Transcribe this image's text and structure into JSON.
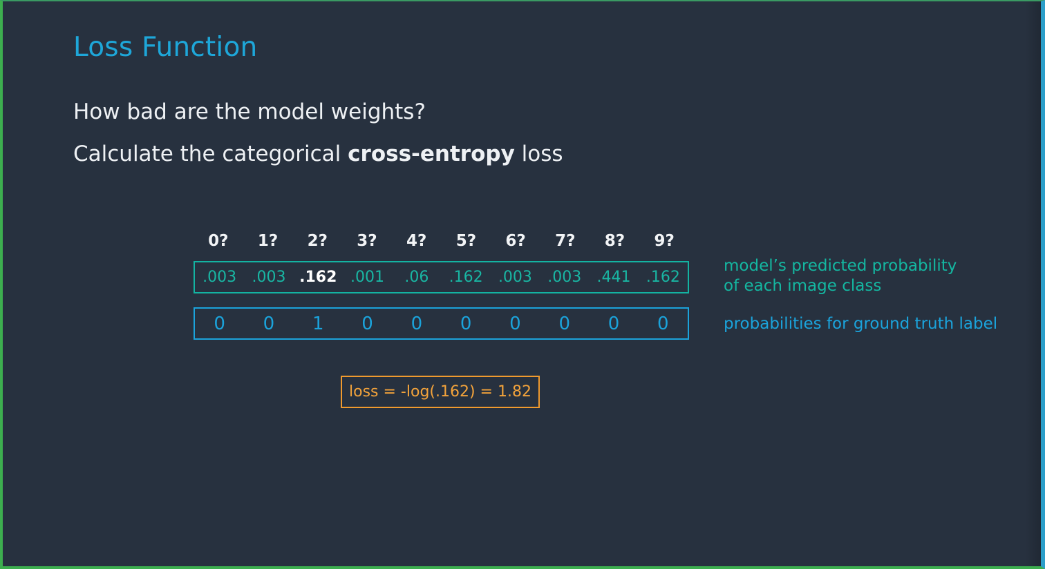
{
  "slide": {
    "title": "Loss Function",
    "question": "How bad are the model weights?",
    "calc_prefix": "Calculate the categorical ",
    "calc_bold": "cross-entropy",
    "calc_suffix": " loss"
  },
  "classes": [
    "0?",
    "1?",
    "2?",
    "3?",
    "4?",
    "5?",
    "6?",
    "7?",
    "8?",
    "9?"
  ],
  "predicted": [
    ".003",
    ".003",
    ".162",
    ".001",
    ".06",
    ".162",
    ".003",
    ".003",
    ".441",
    ".162"
  ],
  "highlighted_index": 2,
  "ground_truth": [
    "0",
    "0",
    "1",
    "0",
    "0",
    "0",
    "0",
    "0",
    "0",
    "0"
  ],
  "annotations": {
    "predicted_line1": "model’s predicted probability",
    "predicted_line2": "of each image class",
    "ground_truth": "probabilities for ground truth label"
  },
  "loss": {
    "formula": "loss = -log(.162) = 1.82"
  },
  "colors": {
    "background": "#27313f",
    "title": "#1ea7d9",
    "predicted": "#14b7a1",
    "ground_truth": "#1ba3db",
    "loss": "#f09a2e"
  }
}
